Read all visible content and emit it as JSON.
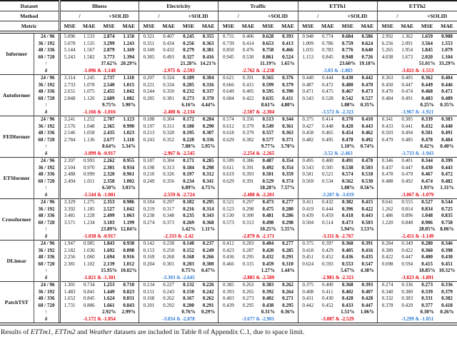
{
  "header": {
    "dataset_label": "Dataset",
    "method_label": "Method",
    "metric_label": "Metric",
    "datasets": [
      "Illness",
      "Electricity",
      "Traffic",
      "ETTh1",
      "ETTh2"
    ],
    "methods": [
      "/",
      "+SOLID"
    ],
    "metrics": [
      "MSE",
      "MAE"
    ]
  },
  "colors": {
    "red": "#e8000d",
    "blue": "#2e7bd6"
  },
  "row_labels": {
    "improve": "↑",
    "delta": "δ"
  },
  "periods": [
    "24 / 96",
    "36 / 192",
    "48 / 336",
    "60 / 720"
  ],
  "models": [
    {
      "name": "Informer",
      "rows": [
        [
          "5.096",
          "1.533",
          "2.874",
          "1.150",
          "0.321",
          "0.407",
          "0.245",
          "0.355",
          "0.731",
          "0.406",
          "0.628",
          "0.393",
          "0.948",
          "0.774",
          "0.684",
          "0.586",
          "2.992",
          "1.362",
          "1.659",
          "0.988"
        ],
        [
          "5.078",
          "1.535",
          "3.299",
          "1.243",
          "0.351",
          "0.434",
          "0.256",
          "0.363",
          "0.739",
          "0.414",
          "0.653",
          "0.413",
          "1.009",
          "0.786",
          "0.759",
          "0.624",
          "6.256",
          "2.091",
          "3.564",
          "1.553"
        ],
        [
          "5.144",
          "1.567",
          "2.879",
          "1.169",
          "0.349",
          "0.432",
          "0.279",
          "0.381",
          "0.850",
          "0.476",
          "0.758",
          "0.466",
          "1.035",
          "0.783",
          "0.776",
          "0.640",
          "5.265",
          "1.954",
          "1.845",
          "1.079"
        ],
        [
          "5.243",
          "1.582",
          "3.773",
          "1.394",
          "0.385",
          "0.493",
          "0.327",
          "0.416",
          "0.945",
          "0.530",
          "0.861",
          "0.524",
          "1.153",
          "0.845",
          "0.948",
          "0.726",
          "4.038",
          "1.673",
          "2.020",
          "1.104"
        ]
      ],
      "improve": [
        "37.62%",
        "20.29%",
        "21.28%",
        "14.21%",
        "11.19%",
        "1.65%",
        "23.60%",
        "19.18%",
        "51.01%",
        "33.29%"
      ],
      "delta": [
        {
          "text": "-1.096 & -1.148",
          "color": "red"
        },
        {
          "text": "-2.975 & -2.593",
          "color": "red"
        },
        {
          "text": "-2.762 & -2.238",
          "color": "red"
        },
        {
          "text": "-3.83 & -1.883",
          "color": "blue"
        },
        {
          "text": "-3.021 & -1.513",
          "color": "red"
        }
      ]
    },
    {
      "name": "Autoformer",
      "rows": [
        [
          "3.314",
          "1.245",
          "2.737",
          "1.118",
          "0.207",
          "0.324",
          "0.189",
          "0.304",
          "0.621",
          "0.391",
          "0.565",
          "0.376",
          "0.440",
          "0.444",
          "0.430",
          "0.442",
          "0.363",
          "0.405",
          "0.362",
          "0.404"
        ],
        [
          "2.733",
          "1.078",
          "2.540",
          "1.015",
          "0.221",
          "0.334",
          "0.205",
          "0.316",
          "0.666",
          "0.415",
          "0.599",
          "0.379",
          "0.487",
          "0.472",
          "0.480",
          "0.470",
          "0.450",
          "0.447",
          "0.449",
          "0.446"
        ],
        [
          "2.651",
          "1.075",
          "2.455",
          "1.042",
          "0.244",
          "0.350",
          "0.232",
          "0.337",
          "0.649",
          "0.405",
          "0.595",
          "0.390",
          "0.471",
          "0.475",
          "0.467",
          "0.473",
          "0.470",
          "0.474",
          "0.468",
          "0.471"
        ],
        [
          "2.848",
          "1.126",
          "2.689",
          "1.082",
          "0.285",
          "0.381",
          "0.273",
          "0.370",
          "0.684",
          "0.422",
          "0.635",
          "0.411",
          "0.543",
          "0.528",
          "0.542",
          "0.527",
          "0.484",
          "0.491",
          "0.483",
          "0.489"
        ]
      ],
      "improve": [
        "9.75%",
        "5.90%",
        "6.16%",
        "4.44%",
        "8.61%",
        "4.80%",
        "1.08%",
        "0.35%",
        "0.25%",
        "0.35%"
      ],
      "delta": [
        {
          "text": "-1.166 & -1.016",
          "color": "red"
        },
        {
          "text": "-2.408 & -2.134",
          "color": "red"
        },
        {
          "text": "-2.507 & -2.304",
          "color": "red"
        },
        {
          "text": "-3.572 & -2.321",
          "color": "blue"
        },
        {
          "text": "-3.967 & -1.921",
          "color": "blue"
        }
      ]
    },
    {
      "name": "FEDformer",
      "rows": [
        [
          "3.241",
          "1.252",
          "2.707",
          "1.123",
          "0.188",
          "0.304",
          "0.172",
          "0.284",
          "0.574",
          "0.356",
          "0.513",
          "0.344",
          "0.375",
          "0.414",
          "0.370",
          "0.410",
          "0.341",
          "0.385",
          "0.339",
          "0.383"
        ],
        [
          "2.576",
          "1.048",
          "2.365",
          "0.990",
          "0.197",
          "0.311",
          "0.180",
          "0.290",
          "0.612",
          "0.379",
          "0.549",
          "0.361",
          "0.427",
          "0.448",
          "0.420",
          "0.443",
          "0.433",
          "0.441",
          "0.432",
          "0.440"
        ],
        [
          "2.546",
          "1.058",
          "2.435",
          "1.023",
          "0.213",
          "0.328",
          "0.195",
          "0.307",
          "0.618",
          "0.379",
          "0.557",
          "0.363",
          "0.458",
          "0.465",
          "0.454",
          "0.462",
          "0.503",
          "0.494",
          "0.501",
          "0.491"
        ],
        [
          "2.784",
          "1.136",
          "2.677",
          "1.118",
          "0.243",
          "0.352",
          "0.228",
          "0.336",
          "0.629",
          "0.382",
          "0.577",
          "0.371",
          "0.482",
          "0.495",
          "0.478",
          "0.492",
          "0.479",
          "0.485",
          "0.478",
          "0.484"
        ]
      ],
      "improve": [
        "8.64%",
        "5.34%",
        "7.88%",
        "5.95%",
        "9.77%",
        "3.70%",
        "1.10%",
        "0.74%",
        "0.42%",
        "0.40%"
      ],
      "delta": [
        {
          "text": "-1.099 & -0.917",
          "color": "red"
        },
        {
          "text": "-2.967 & -2.545",
          "color": "red"
        },
        {
          "text": "-2.254 & -2.265",
          "color": "red"
        },
        {
          "text": "-3.52 & -2.463",
          "color": "blue"
        },
        {
          "text": "-3.733 & -1.943",
          "color": "blue"
        }
      ]
    },
    {
      "name": "ETSformer",
      "rows": [
        [
          "2.397",
          "0.993",
          "2.262",
          "0.955",
          "0.187",
          "0.304",
          "0.171",
          "0.285",
          "0.599",
          "0.386",
          "0.487",
          "0.354",
          "0.495",
          "0.480",
          "0.491",
          "0.478",
          "0.346",
          "0.401",
          "0.344",
          "0.399"
        ],
        [
          "2.504",
          "0.970",
          "2.301",
          "0.934",
          "0.198",
          "0.313",
          "0.184",
          "0.298",
          "0.611",
          "0.391",
          "0.492",
          "0.354",
          "0.543",
          "0.505",
          "0.538",
          "0.503",
          "0.437",
          "0.447",
          "0.430",
          "0.443"
        ],
        [
          "2.488",
          "0.999",
          "2.320",
          "0.961",
          "0.210",
          "0.326",
          "0.197",
          "0.312",
          "0.619",
          "0.393",
          "0.501",
          "0.359",
          "0.581",
          "0.521",
          "0.574",
          "0.518",
          "0.478",
          "0.479",
          "0.467",
          "0.472"
        ],
        [
          "2.494",
          "1.011",
          "2.358",
          "1.002",
          "0.249",
          "0.356",
          "0.234",
          "0.341",
          "0.629",
          "0.391",
          "0.529",
          "0.374",
          "0.569",
          "0.534",
          "0.562",
          "0.530",
          "0.488",
          "0.492",
          "0.474",
          "0.482"
        ]
      ],
      "improve": [
        "6.50%",
        "3.03%",
        "6.89%",
        "4.75%",
        "18.28%",
        "7.57%",
        "1.08%",
        "0.56%",
        "1.93%",
        "1.31%"
      ],
      "delta": [
        {
          "text": "-1.544 & -1.001",
          "color": "red"
        },
        {
          "text": "-2.559 & -2.724",
          "color": "red"
        },
        {
          "text": "-2.488 & -2.201",
          "color": "red"
        },
        {
          "text": "-3.207 & -3.019",
          "color": "blue"
        },
        {
          "text": "-3.067 & -1.079",
          "color": "red"
        }
      ]
    },
    {
      "name": "Crossformer",
      "rows": [
        [
          "3.329",
          "1.275",
          "2.353",
          "0.986",
          "0.184",
          "0.297",
          "0.182",
          "0.295",
          "0.521",
          "0.297",
          "0.473",
          "0.277",
          "0.411",
          "0.432",
          "0.382",
          "0.415",
          "0.641",
          "0.555",
          "0.527",
          "0.544"
        ],
        [
          "3.392",
          "1.185",
          "2.527",
          "1.042",
          "0.219",
          "0.317",
          "0.216",
          "0.314",
          "0.523",
          "0.298",
          "0.475",
          "0.280",
          "0.419",
          "0.444",
          "0.396",
          "0.422",
          "1.262",
          "0.814",
          "0.834",
          "0.725"
        ],
        [
          "3.481",
          "1.228",
          "2.499",
          "1.063",
          "0.238",
          "0.348",
          "0.235",
          "0.343",
          "0.530",
          "0.300",
          "0.481",
          "0.286",
          "0.439",
          "0.459",
          "0.418",
          "0.443",
          "1.486",
          "0.896",
          "1.048",
          "0.835"
        ],
        [
          "3.571",
          "1.234",
          "3.103",
          "1.199",
          "0.274",
          "0.373",
          "0.269",
          "0.368",
          "0.573",
          "0.313",
          "0.498",
          "0.298",
          "0.504",
          "0.514",
          "0.473",
          "0.503",
          "1.220",
          "0.848",
          "0.906",
          "0.758"
        ]
      ],
      "improve": [
        "23.89%",
        "12.84%",
        "1.42%",
        "1.11%",
        "10.25%",
        "5.55%",
        "5.94%",
        "3.53%",
        "28.05%",
        "8.06%"
      ],
      "delta": [
        {
          "text": "-1.038 & -0.917",
          "color": "red"
        },
        {
          "text": "-2.333 & -2.42",
          "color": "red"
        },
        {
          "text": "-2.879 & -2.171",
          "color": "red"
        },
        {
          "text": "-3.111 & -2.767",
          "color": "red"
        },
        {
          "text": "-2.451 & -1.149",
          "color": "red"
        }
      ]
    },
    {
      "name": "DLinear",
      "rows": [
        [
          "1.947",
          "0.985",
          "1.843",
          "0.938",
          "0.142",
          "0.238",
          "0.140",
          "0.237",
          "0.412",
          "0.283",
          "0.404",
          "0.277",
          "0.375",
          "0.397",
          "0.368",
          "0.391",
          "0.284",
          "0.349",
          "0.280",
          "0.346"
        ],
        [
          "2.182",
          "1.036",
          "1.692",
          "0.898",
          "0.153",
          "0.250",
          "0.152",
          "0.249",
          "0.423",
          "0.287",
          "0.420",
          "0.285",
          "0.418",
          "0.429",
          "0.405",
          "0.416",
          "0.389",
          "0.422",
          "0.360",
          "0.398"
        ],
        [
          "2.256",
          "1.060",
          "1.694",
          "0.916",
          "0.169",
          "0.268",
          "0.168",
          "0.266",
          "0.436",
          "0.295",
          "0.432",
          "0.291",
          "0.451",
          "0.452",
          "0.436",
          "0.435",
          "0.422",
          "0.447",
          "0.400",
          "0.430"
        ],
        [
          "2.381",
          "1.102",
          "2.139",
          "1.012",
          "0.204",
          "0.301",
          "0.203",
          "0.300",
          "0.466",
          "0.315",
          "0.459",
          "0.310",
          "0.624",
          "0.593",
          "0.553",
          "0.547",
          "0.698",
          "0.594",
          "0.415",
          "0.451"
        ]
      ],
      "improve": [
        "15.95%",
        "10.02%",
        "0.75%",
        "0.47%",
        "1.27%",
        "1.44%",
        "5.67%",
        "4.38%",
        "18.85%",
        "10.32%"
      ],
      "delta": [
        {
          "text": "-1.821 & -1.301",
          "color": "red"
        },
        {
          "text": "-3.303 & -2.645",
          "color": "blue"
        },
        {
          "text": "-2.883 & -2.589",
          "color": "red"
        },
        {
          "text": "-2.981 & -2.321",
          "color": "red"
        },
        {
          "text": "-3.023 & -1.891",
          "color": "red"
        }
      ]
    },
    {
      "name": "PatchTST",
      "rows": [
        [
          "1.301",
          "0.734",
          "1.253",
          "0.710",
          "0.134",
          "0.227",
          "0.132",
          "0.226",
          "0.385",
          "0.263",
          "0.383",
          "0.262",
          "0.375",
          "0.400",
          "0.368",
          "0.393",
          "0.274",
          "0.336",
          "0.273",
          "0.336"
        ],
        [
          "1.483",
          "0.841",
          "1.449",
          "0.823",
          "0.151",
          "0.243",
          "0.150",
          "0.242",
          "0.393",
          "0.265",
          "0.392",
          "0.264",
          "0.408",
          "0.411",
          "0.402",
          "0.407",
          "0.340",
          "0.380",
          "0.339",
          "0.379"
        ],
        [
          "1.652",
          "0.845",
          "1.624",
          "0.831",
          "0.168",
          "0.262",
          "0.167",
          "0.262",
          "0.403",
          "0.273",
          "0.402",
          "0.271",
          "0.431",
          "0.430",
          "0.428",
          "0.428",
          "0.332",
          "0.383",
          "0.331",
          "0.382"
        ],
        [
          "1.731",
          "0.886",
          "1.661",
          "0.843",
          "0.201",
          "0.292",
          "0.200",
          "0.291",
          "0.439",
          "0.295",
          "0.438",
          "0.295",
          "0.442",
          "0.452",
          "0.433",
          "0.447",
          "0.378",
          "0.420",
          "0.377",
          "0.418"
        ]
      ],
      "improve": [
        "2.92%",
        "2.99%",
        "0.76%",
        "0.29%",
        "0.31%",
        "0.36%",
        "1.51%",
        "1.06%",
        "0.30%",
        "0.26%"
      ],
      "delta": [
        {
          "text": "-1.172 & -1.054",
          "color": "red"
        },
        {
          "text": "-3.834 & -2.878",
          "color": "blue"
        },
        {
          "text": "-3.677 & -2.901",
          "color": "blue"
        },
        {
          "text": "-3.087 & -2.529",
          "color": "red"
        },
        {
          "text": "-3.299 & -1.851",
          "color": "blue"
        }
      ]
    }
  ],
  "caption": {
    "parts": [
      {
        "t": "Results of ",
        "i": false
      },
      {
        "t": "ETTm1",
        "i": true
      },
      {
        "t": ", ",
        "i": false
      },
      {
        "t": "ETTm2",
        "i": true
      },
      {
        "t": " and ",
        "i": false
      },
      {
        "t": "Weather",
        "i": true
      },
      {
        "t": " datasets are included in Table 8 of Appendix C.1, due to space limit.",
        "i": false
      }
    ]
  }
}
